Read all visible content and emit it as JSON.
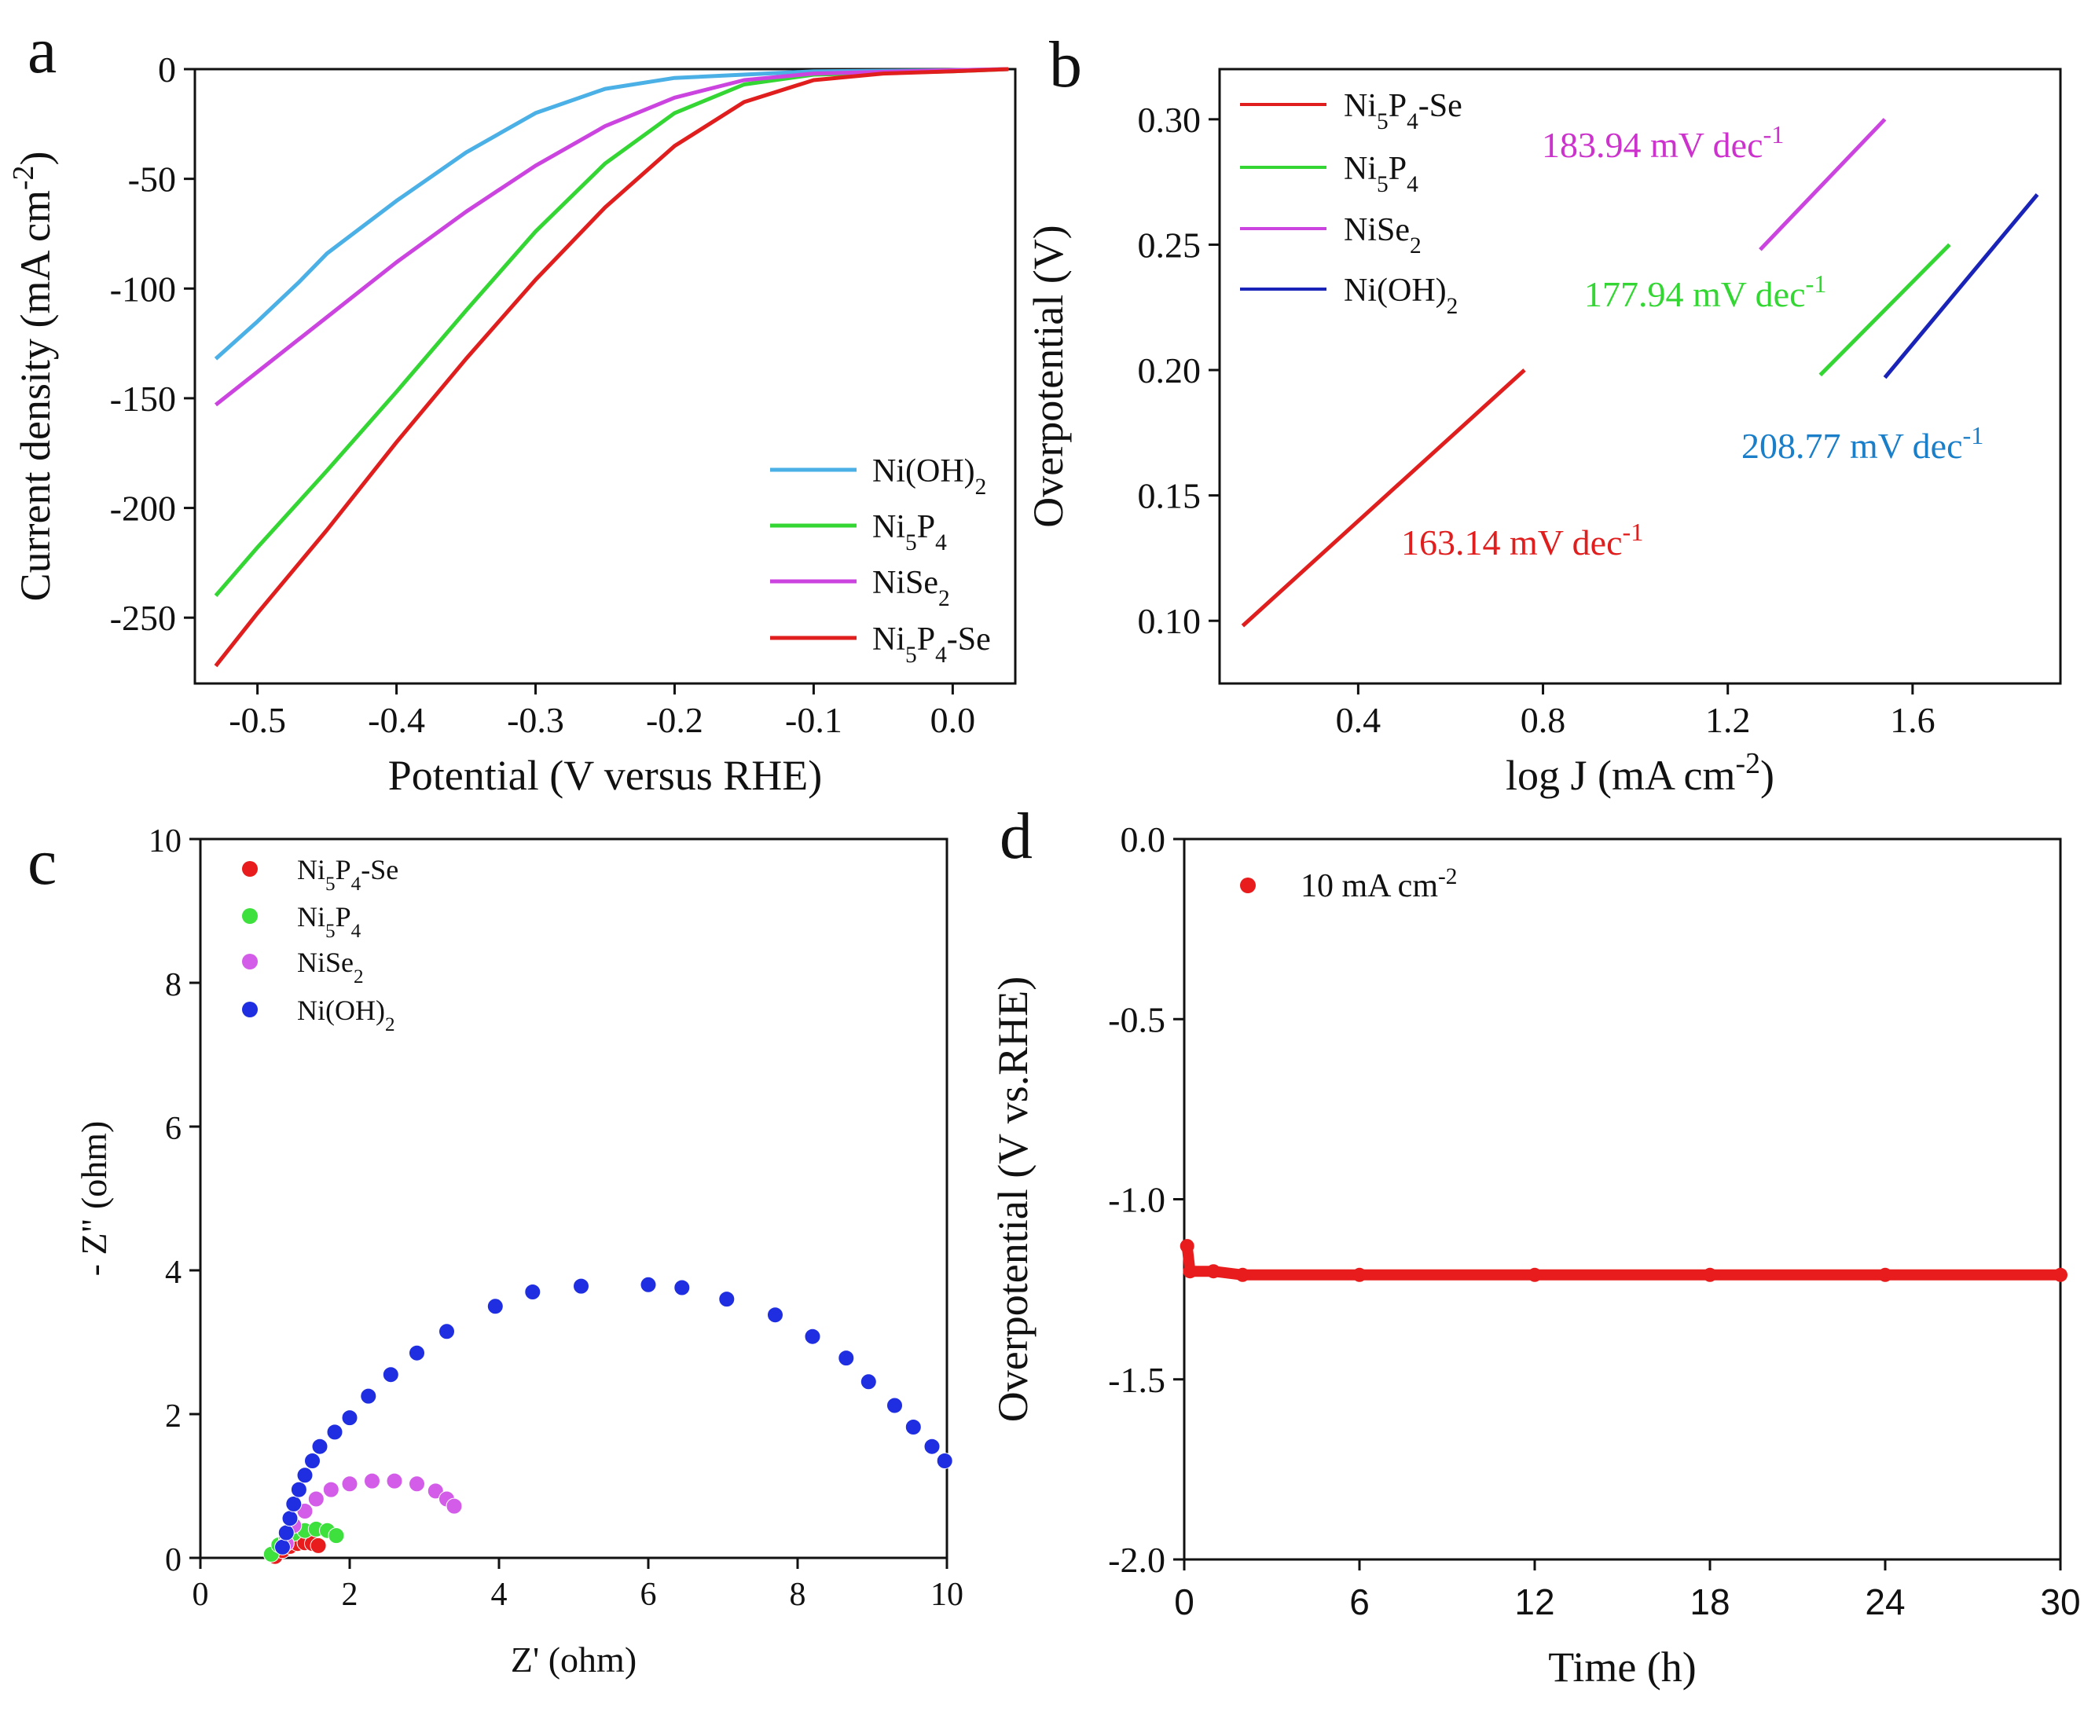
{
  "chart_data": [
    {
      "panel": "a",
      "type": "line",
      "xlabel": "Potential (V versus RHE)",
      "ylabel": "Current density (mA cm-2)",
      "xlim": [
        -0.545,
        0.045
      ],
      "ylim": [
        -280,
        0
      ],
      "xticks": [
        -0.5,
        -0.4,
        -0.3,
        -0.2,
        -0.1,
        0.0
      ],
      "xtick_labels": [
        "-0.5",
        "-0.4",
        "-0.3",
        "-0.2",
        "-0.1",
        "0.0"
      ],
      "yticks": [
        0,
        -50,
        -100,
        -150,
        -200,
        -250
      ],
      "ytick_labels": [
        "0",
        "-50",
        "-100",
        "-150",
        "-200",
        "-250"
      ],
      "legend_position": "bottom-right",
      "series": [
        {
          "name": "Ni(OH)2",
          "color": "#4ab0e6",
          "points": [
            [
              -0.53,
              -132
            ],
            [
              -0.5,
              -115
            ],
            [
              -0.47,
              -97
            ],
            [
              -0.45,
              -84
            ],
            [
              -0.4,
              -60
            ],
            [
              -0.35,
              -38
            ],
            [
              -0.3,
              -20
            ],
            [
              -0.25,
              -9
            ],
            [
              -0.2,
              -4
            ],
            [
              -0.1,
              -1
            ],
            [
              0.0,
              -0.5
            ],
            [
              0.04,
              0
            ]
          ]
        },
        {
          "name": "Ni5P4",
          "color": "#33d633",
          "points": [
            [
              -0.53,
              -240
            ],
            [
              -0.5,
              -218
            ],
            [
              -0.45,
              -183
            ],
            [
              -0.4,
              -147
            ],
            [
              -0.35,
              -110
            ],
            [
              -0.3,
              -74
            ],
            [
              -0.25,
              -43
            ],
            [
              -0.2,
              -20
            ],
            [
              -0.15,
              -7
            ],
            [
              -0.1,
              -2.5
            ],
            [
              0.0,
              -1
            ],
            [
              0.04,
              0
            ]
          ]
        },
        {
          "name": "NiSe2",
          "color": "#cc44e0",
          "points": [
            [
              -0.53,
              -153
            ],
            [
              -0.5,
              -138
            ],
            [
              -0.45,
              -113
            ],
            [
              -0.4,
              -88
            ],
            [
              -0.35,
              -65
            ],
            [
              -0.3,
              -44
            ],
            [
              -0.25,
              -26
            ],
            [
              -0.2,
              -13
            ],
            [
              -0.15,
              -5
            ],
            [
              -0.1,
              -2
            ],
            [
              0.0,
              -0.5
            ],
            [
              0.04,
              0
            ]
          ]
        },
        {
          "name": "Ni5P4-Se",
          "color": "#e01e1e",
          "points": [
            [
              -0.53,
              -272
            ],
            [
              -0.5,
              -248
            ],
            [
              -0.45,
              -210
            ],
            [
              -0.4,
              -170
            ],
            [
              -0.35,
              -132
            ],
            [
              -0.3,
              -96
            ],
            [
              -0.25,
              -63
            ],
            [
              -0.2,
              -35
            ],
            [
              -0.15,
              -15
            ],
            [
              -0.1,
              -5
            ],
            [
              -0.05,
              -2
            ],
            [
              0.0,
              -1
            ],
            [
              0.04,
              0
            ]
          ]
        }
      ],
      "legend": [
        "Ni(OH)2",
        "Ni5P4",
        "NiSe2",
        "Ni5P4-Se"
      ]
    },
    {
      "panel": "b",
      "type": "line",
      "xlabel": "log J (mA cm-2)",
      "ylabel": "Overpotential (V)",
      "xlim": [
        0.1,
        1.92
      ],
      "ylim": [
        0.075,
        0.32
      ],
      "xticks": [
        0.4,
        0.8,
        1.2,
        1.6
      ],
      "xtick_labels": [
        "0.4",
        "0.8",
        "1.2",
        "1.6"
      ],
      "yticks": [
        0.1,
        0.15,
        0.2,
        0.25,
        0.3
      ],
      "ytick_labels": [
        "0.10",
        "0.15",
        "0.20",
        "0.25",
        "0.30"
      ],
      "legend_position": "top-left",
      "series": [
        {
          "name": "Ni5P4-Se",
          "color": "#e01e1e",
          "points": [
            [
              0.15,
              0.098
            ],
            [
              0.76,
              0.2
            ]
          ]
        },
        {
          "name": "Ni5P4",
          "color": "#33d633",
          "points": [
            [
              1.4,
              0.198
            ],
            [
              1.68,
              0.25
            ]
          ]
        },
        {
          "name": "NiSe2",
          "color": "#cc44e0",
          "points": [
            [
              1.27,
              0.248
            ],
            [
              1.54,
              0.3
            ]
          ]
        },
        {
          "name": "Ni(OH)2",
          "color": "#1a23b8",
          "points": [
            [
              1.54,
              0.197
            ],
            [
              1.87,
              0.27
            ]
          ]
        }
      ],
      "legend": [
        "Ni5P4-Se",
        "Ni5P4",
        "NiSe2",
        "Ni(OH)2"
      ],
      "annotations": [
        {
          "text": "183.94 mV dec-1",
          "series": "NiSe2",
          "color": "#cc33cc"
        },
        {
          "text": "177.94 mV dec-1",
          "series": "Ni5P4",
          "color": "#33d633"
        },
        {
          "text": "208.77 mV dec-1",
          "series": "Ni(OH)2",
          "color": "#1a7fc8"
        },
        {
          "text": "163.14 mV dec-1",
          "series": "Ni5P4-Se",
          "color": "#e01e1e"
        }
      ]
    },
    {
      "panel": "c",
      "type": "scatter",
      "xlabel": "Z' (ohm)",
      "ylabel": "- Z\" (ohm)",
      "xlim": [
        0,
        10
      ],
      "ylim": [
        0,
        10
      ],
      "xticks": [
        0,
        2,
        4,
        6,
        8,
        10
      ],
      "yticks": [
        0,
        2,
        4,
        6,
        8,
        10
      ],
      "legend_position": "top-left",
      "series": [
        {
          "name": "Ni5P4-Se",
          "color": "#e81c1c",
          "points": [
            [
              1.0,
              0.02
            ],
            [
              1.1,
              0.1
            ],
            [
              1.2,
              0.16
            ],
            [
              1.3,
              0.2
            ],
            [
              1.4,
              0.21
            ],
            [
              1.5,
              0.2
            ],
            [
              1.58,
              0.17
            ]
          ]
        },
        {
          "name": "Ni5P4",
          "color": "#3de03d",
          "points": [
            [
              0.95,
              0.05
            ],
            [
              1.05,
              0.18
            ],
            [
              1.15,
              0.28
            ],
            [
              1.25,
              0.34
            ],
            [
              1.4,
              0.38
            ],
            [
              1.55,
              0.4
            ],
            [
              1.7,
              0.38
            ],
            [
              1.82,
              0.31
            ]
          ]
        },
        {
          "name": "NiSe2",
          "color": "#d35ce8",
          "points": [
            [
              1.15,
              0.2
            ],
            [
              1.25,
              0.45
            ],
            [
              1.4,
              0.65
            ],
            [
              1.55,
              0.82
            ],
            [
              1.75,
              0.95
            ],
            [
              2.0,
              1.03
            ],
            [
              2.3,
              1.07
            ],
            [
              2.6,
              1.07
            ],
            [
              2.9,
              1.03
            ],
            [
              3.15,
              0.93
            ],
            [
              3.3,
              0.82
            ],
            [
              3.4,
              0.72
            ]
          ]
        },
        {
          "name": "Ni(OH)2",
          "color": "#1f2ee0",
          "points": [
            [
              1.1,
              0.15
            ],
            [
              1.15,
              0.35
            ],
            [
              1.2,
              0.55
            ],
            [
              1.25,
              0.75
            ],
            [
              1.32,
              0.95
            ],
            [
              1.4,
              1.15
            ],
            [
              1.5,
              1.35
            ],
            [
              1.6,
              1.55
            ],
            [
              1.8,
              1.75
            ],
            [
              2.0,
              1.95
            ],
            [
              2.25,
              2.25
            ],
            [
              2.55,
              2.55
            ],
            [
              2.9,
              2.85
            ],
            [
              3.3,
              3.15
            ],
            [
              3.95,
              3.5
            ],
            [
              4.45,
              3.7
            ],
            [
              5.1,
              3.78
            ],
            [
              6.0,
              3.8
            ],
            [
              6.45,
              3.76
            ],
            [
              7.05,
              3.6
            ],
            [
              7.7,
              3.38
            ],
            [
              8.2,
              3.08
            ],
            [
              8.65,
              2.78
            ],
            [
              8.95,
              2.45
            ],
            [
              9.3,
              2.12
            ],
            [
              9.55,
              1.82
            ],
            [
              9.8,
              1.55
            ],
            [
              9.97,
              1.35
            ]
          ]
        }
      ],
      "legend": [
        "Ni5P4-Se",
        "Ni5P4",
        "NiSe2",
        "Ni(OH)2"
      ]
    },
    {
      "panel": "d",
      "type": "scatter",
      "xlabel": "Time (h)",
      "ylabel": "Overpotential (V vs.RHE)",
      "xlim": [
        0,
        30
      ],
      "ylim": [
        -2.0,
        0.0
      ],
      "xticks": [
        0,
        6,
        12,
        18,
        24,
        30
      ],
      "yticks": [
        0.0,
        -0.5,
        -1.0,
        -1.5,
        -2.0
      ],
      "ytick_labels": [
        "0.0",
        "-0.5",
        "-1.0",
        "-1.5",
        "-2.0"
      ],
      "legend_position": "top-left",
      "series": [
        {
          "name": "10 mA cm-2",
          "color": "#e81c1c",
          "points": [
            [
              0.1,
              -1.13
            ],
            [
              0.2,
              -1.2
            ],
            [
              1.0,
              -1.2
            ],
            [
              2.0,
              -1.21
            ],
            [
              6,
              -1.21
            ],
            [
              12,
              -1.21
            ],
            [
              18,
              -1.21
            ],
            [
              24,
              -1.21
            ],
            [
              30,
              -1.21
            ]
          ]
        }
      ],
      "legend": [
        "10 mA cm-2"
      ]
    }
  ],
  "panels": {
    "a": {
      "letter": "a"
    },
    "b": {
      "letter": "b"
    },
    "c": {
      "letter": "c"
    },
    "d": {
      "letter": "d"
    }
  }
}
